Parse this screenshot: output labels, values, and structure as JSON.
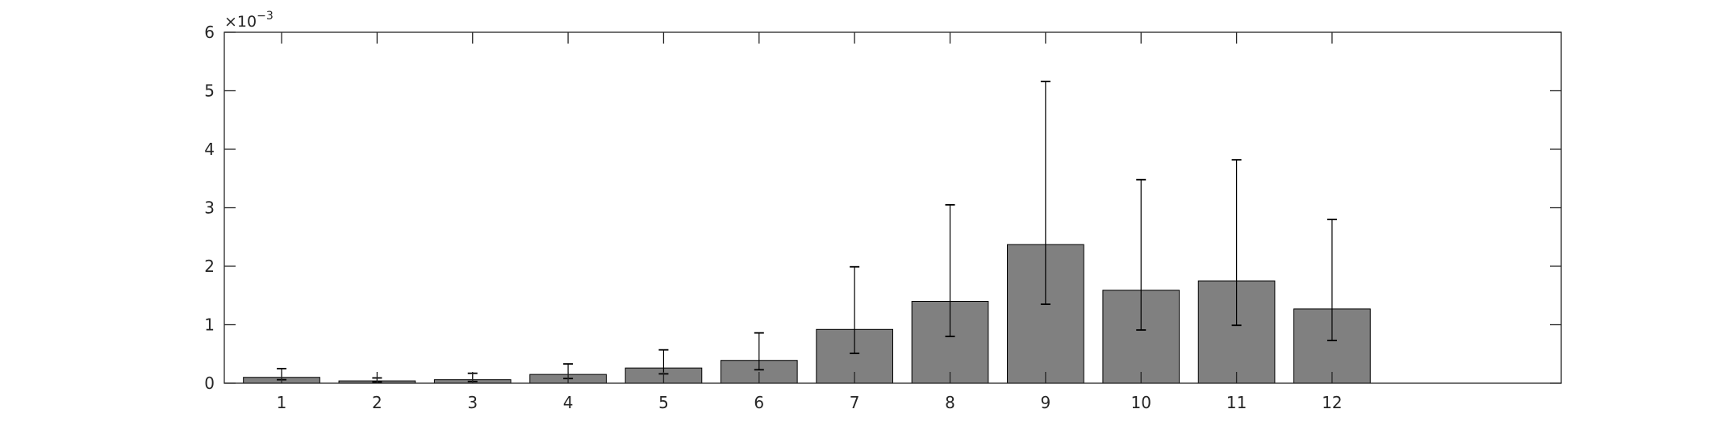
{
  "chart_data": {
    "type": "bar",
    "categories": [
      "1",
      "2",
      "3",
      "4",
      "5",
      "6",
      "7",
      "8",
      "9",
      "10",
      "11",
      "12"
    ],
    "values": [
      0.0001,
      4e-05,
      6e-05,
      0.00015,
      0.00026,
      0.00039,
      0.00092,
      0.0014,
      0.00237,
      0.00159,
      0.00175,
      0.00127
    ],
    "error_low": [
      6e-05,
      2e-05,
      3e-05,
      8e-05,
      0.00016,
      0.00023,
      0.00051,
      0.0008,
      0.00135,
      0.00091,
      0.00099,
      0.00073
    ],
    "error_high": [
      0.00025,
      9e-05,
      0.00017,
      0.00033,
      0.00057,
      0.00086,
      0.00199,
      0.00305,
      0.00516,
      0.00348,
      0.00382,
      0.0028
    ],
    "ylim": [
      0,
      0.006
    ],
    "xlim": [
      0.4,
      14.4
    ],
    "yticks": [
      0,
      1,
      2,
      3,
      4,
      5,
      6
    ],
    "ytick_labels": [
      "0",
      "1",
      "2",
      "3",
      "4",
      "5",
      "6"
    ],
    "y_exponent_label": "×10",
    "y_exponent_power": "−3",
    "title": "",
    "xlabel": "",
    "ylabel": "",
    "grid": false,
    "bar_color": "#808080",
    "bar_edge_color": "#000000",
    "axis_color": "#262626"
  }
}
